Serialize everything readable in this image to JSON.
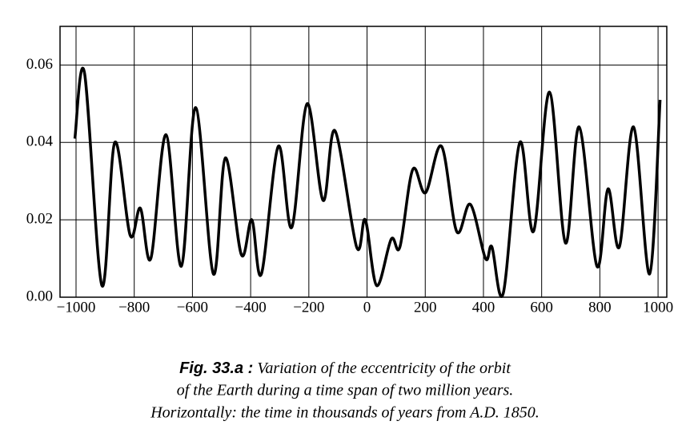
{
  "chart_data": {
    "type": "line",
    "x": [
      -1004,
      -971,
      -911,
      -867,
      -814,
      -779,
      -743,
      -691,
      -638,
      -589,
      -528,
      -487,
      -432,
      -396,
      -363,
      -305,
      -259,
      -206,
      -151,
      -110,
      -36,
      -6,
      33,
      83,
      113,
      157,
      201,
      256,
      308,
      355,
      407,
      429,
      468,
      525,
      572,
      627,
      682,
      729,
      790,
      828,
      867,
      916,
      971,
      1007
    ],
    "series": [
      {
        "color": "#000000",
        "values": [
          0.041,
          0.058,
          0.003,
          0.04,
          0.016,
          0.023,
          0.01,
          0.042,
          0.008,
          0.049,
          0.006,
          0.036,
          0.011,
          0.02,
          0.006,
          0.039,
          0.018,
          0.05,
          0.025,
          0.043,
          0.013,
          0.02,
          0.003,
          0.015,
          0.013,
          0.033,
          0.027,
          0.039,
          0.017,
          0.024,
          0.01,
          0.013,
          0.001,
          0.04,
          0.017,
          0.053,
          0.014,
          0.044,
          0.008,
          0.028,
          0.013,
          0.044,
          0.006,
          0.051
        ]
      }
    ],
    "xlim": [
      -1055,
      1030
    ],
    "ylim": [
      0,
      0.07
    ],
    "xticks": [
      {
        "value": -1000,
        "label": "−1000"
      },
      {
        "value": -800,
        "label": "−800"
      },
      {
        "value": -600,
        "label": "−600"
      },
      {
        "value": -400,
        "label": "−400"
      },
      {
        "value": -200,
        "label": "−200"
      },
      0,
      200,
      400,
      600,
      800,
      1000
    ],
    "yticks": [
      {
        "value": 0,
        "label": "0.00"
      },
      0.02,
      0.04,
      0.06
    ],
    "grid": true,
    "caption": {
      "label": "Fig. 33.a :",
      "lines": [
        "Variation of the eccentricity of the orbit",
        "of the Earth during a time span of two million years.",
        "Horizontally: the time in thousands of years from A.D. 1850."
      ]
    }
  }
}
